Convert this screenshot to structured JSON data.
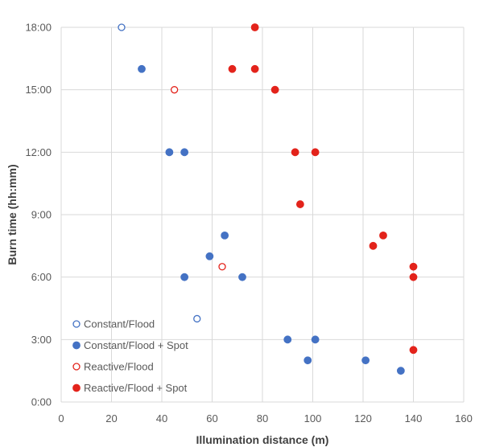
{
  "chart_data": {
    "type": "scatter",
    "xlabel": "Illumination distance (m)",
    "ylabel": "Burn time (hh:mm)",
    "xlim": [
      0,
      160
    ],
    "ylim": [
      "0:00",
      "18:00"
    ],
    "x_ticks": [
      "0",
      "20",
      "40",
      "60",
      "80",
      "100",
      "120",
      "140",
      "160"
    ],
    "y_ticks": [
      "0:00",
      "3:00",
      "6:00",
      "9:00",
      "12:00",
      "15:00",
      "18:00"
    ],
    "grid": "both",
    "legend_position": "bottom-left",
    "series": [
      {
        "name": "Constant/Flood",
        "marker": "hollow",
        "color": "#4472c4",
        "points": [
          {
            "x": 24,
            "y": "18:00"
          },
          {
            "x": 54,
            "y": "4:00"
          }
        ]
      },
      {
        "name": "Constant/Flood + Spot",
        "marker": "filled",
        "color": "#4472c4",
        "points": [
          {
            "x": 32,
            "y": "16:00"
          },
          {
            "x": 43,
            "y": "12:00"
          },
          {
            "x": 49,
            "y": "12:00"
          },
          {
            "x": 65,
            "y": "8:00"
          },
          {
            "x": 59,
            "y": "7:00"
          },
          {
            "x": 49,
            "y": "6:00"
          },
          {
            "x": 72,
            "y": "6:00"
          },
          {
            "x": 90,
            "y": "3:00"
          },
          {
            "x": 101,
            "y": "3:00"
          },
          {
            "x": 98,
            "y": "2:00"
          },
          {
            "x": 121,
            "y": "2:00"
          },
          {
            "x": 135,
            "y": "1:30"
          }
        ]
      },
      {
        "name": "Reactive/Flood",
        "marker": "hollow",
        "color": "#e3231b",
        "points": [
          {
            "x": 45,
            "y": "15:00"
          },
          {
            "x": 64,
            "y": "6:30"
          }
        ]
      },
      {
        "name": "Reactive/Flood + Spot",
        "marker": "filled",
        "color": "#e3231b",
        "points": [
          {
            "x": 77,
            "y": "18:00"
          },
          {
            "x": 68,
            "y": "16:00"
          },
          {
            "x": 77,
            "y": "16:00"
          },
          {
            "x": 85,
            "y": "15:00"
          },
          {
            "x": 93,
            "y": "12:00"
          },
          {
            "x": 101,
            "y": "12:00"
          },
          {
            "x": 95,
            "y": "9:30"
          },
          {
            "x": 128,
            "y": "8:00"
          },
          {
            "x": 124,
            "y": "7:30"
          },
          {
            "x": 140,
            "y": "6:30"
          },
          {
            "x": 140,
            "y": "6:00"
          },
          {
            "x": 140,
            "y": "2:30"
          }
        ]
      }
    ]
  }
}
